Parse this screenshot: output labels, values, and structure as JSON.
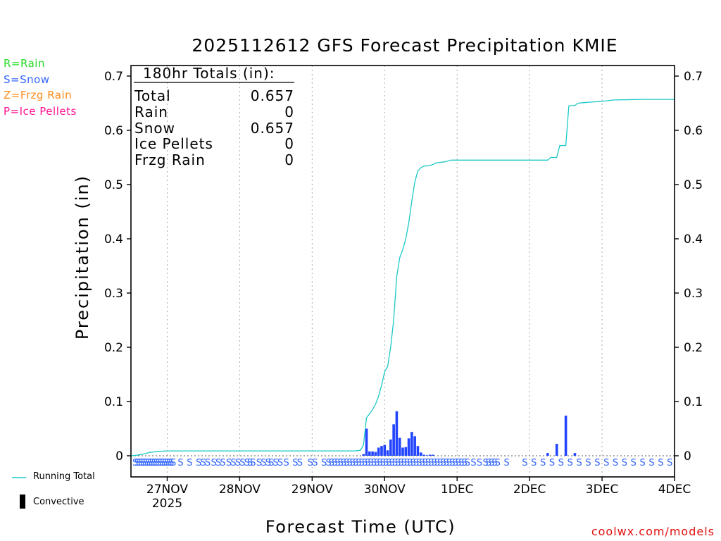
{
  "title": "2025112612 GFS Forecast Precipitation KMIE",
  "ptype_legend": [
    {
      "text": "R=Rain",
      "color": "#22dd22"
    },
    {
      "text": "S=Snow",
      "color": "#3366ff"
    },
    {
      "text": "Z=Frzg Rain",
      "color": "#ff8c1a"
    },
    {
      "text": "P=Ice Pellets",
      "color": "#ff1493"
    }
  ],
  "totals": {
    "header": "180hr Totals (in):",
    "rows": [
      {
        "label": "Total",
        "value": "0.657"
      },
      {
        "label": "Rain",
        "value": "0"
      },
      {
        "label": "Snow",
        "value": "0.657"
      },
      {
        "label": "Ice Pellets",
        "value": "0"
      },
      {
        "label": "Frzg Rain",
        "value": "0"
      }
    ]
  },
  "bottom_legend": {
    "running_total": "Running Total",
    "convective": "Convective"
  },
  "credit": "coolwx.com/models",
  "colors": {
    "running_total": "#1cc8c8",
    "snow_bar": "#2244ff",
    "snow_text": "#3366ff",
    "grid": "#aaaaaa"
  },
  "chart_data": {
    "type": "bar",
    "title": "2025112612 GFS Forecast Precipitation KMIE",
    "xlabel": "Forecast Time (UTC)",
    "ylabel": "Precipitation (in)",
    "ylim": [
      0,
      0.72
    ],
    "xlim_hours": [
      0,
      180
    ],
    "y_ticks": [
      "0",
      "0.1",
      "0.2",
      "0.3",
      "0.4",
      "0.5",
      "0.6",
      "0.7"
    ],
    "x_ticks": [
      {
        "hour": 12,
        "label": "27NOV",
        "sub": "2025"
      },
      {
        "hour": 36,
        "label": "28NOV",
        "sub": ""
      },
      {
        "hour": 60,
        "label": "29NOV",
        "sub": ""
      },
      {
        "hour": 84,
        "label": "30NOV",
        "sub": ""
      },
      {
        "hour": 108,
        "label": "1DEC",
        "sub": ""
      },
      {
        "hour": 132,
        "label": "2DEC",
        "sub": ""
      },
      {
        "hour": 156,
        "label": "3DEC",
        "sub": ""
      },
      {
        "hour": 180,
        "label": "4DEC",
        "sub": ""
      }
    ],
    "series": [
      {
        "name": "Running Total",
        "type": "line",
        "points": [
          [
            0,
            0
          ],
          [
            2,
            0.001
          ],
          [
            4,
            0.003
          ],
          [
            6,
            0.006
          ],
          [
            9,
            0.008
          ],
          [
            12,
            0.009
          ],
          [
            30,
            0.009
          ],
          [
            60,
            0.009
          ],
          [
            74,
            0.009
          ],
          [
            76,
            0.01
          ],
          [
            77,
            0.02
          ],
          [
            78,
            0.07
          ],
          [
            80,
            0.085
          ],
          [
            81,
            0.095
          ],
          [
            82,
            0.11
          ],
          [
            83,
            0.13
          ],
          [
            84,
            0.155
          ],
          [
            85,
            0.165
          ],
          [
            86,
            0.2
          ],
          [
            87,
            0.25
          ],
          [
            88,
            0.33
          ],
          [
            89,
            0.365
          ],
          [
            90,
            0.38
          ],
          [
            91,
            0.4
          ],
          [
            92,
            0.43
          ],
          [
            93,
            0.47
          ],
          [
            94,
            0.505
          ],
          [
            95,
            0.525
          ],
          [
            96,
            0.531
          ],
          [
            97,
            0.534
          ],
          [
            99,
            0.535
          ],
          [
            100,
            0.537
          ],
          [
            101,
            0.54
          ],
          [
            104,
            0.542
          ],
          [
            106,
            0.545
          ],
          [
            112,
            0.545
          ],
          [
            124,
            0.545
          ],
          [
            138,
            0.545
          ],
          [
            139,
            0.55
          ],
          [
            141,
            0.55
          ],
          [
            142,
            0.572
          ],
          [
            144,
            0.572
          ],
          [
            145,
            0.645
          ],
          [
            147,
            0.646
          ],
          [
            148,
            0.65
          ],
          [
            150,
            0.651
          ],
          [
            152,
            0.652
          ],
          [
            155,
            0.653
          ],
          [
            157,
            0.654
          ],
          [
            160,
            0.656
          ],
          [
            170,
            0.657
          ],
          [
            180,
            0.657
          ]
        ]
      },
      {
        "name": "Snow",
        "type": "bar",
        "points": [
          [
            77,
            0.003
          ],
          [
            78,
            0.05
          ],
          [
            79,
            0.008
          ],
          [
            80,
            0.008
          ],
          [
            81,
            0.007
          ],
          [
            82,
            0.015
          ],
          [
            83,
            0.018
          ],
          [
            84,
            0.02
          ],
          [
            85,
            0.01
          ],
          [
            86,
            0.03
          ],
          [
            87,
            0.058
          ],
          [
            88,
            0.082
          ],
          [
            89,
            0.033
          ],
          [
            90,
            0.015
          ],
          [
            91,
            0.016
          ],
          [
            92,
            0.032
          ],
          [
            93,
            0.044
          ],
          [
            94,
            0.036
          ],
          [
            95,
            0.018
          ],
          [
            96,
            0.006
          ],
          [
            97,
            0.002
          ],
          [
            98,
            0.001
          ],
          [
            99,
            0.002
          ],
          [
            100,
            0.002
          ],
          [
            138,
            0.005
          ],
          [
            141,
            0.022
          ],
          [
            144,
            0.074
          ],
          [
            147,
            0.005
          ]
        ]
      }
    ],
    "ptype_markers": {
      "symbol": "S",
      "hours": [
        0,
        0.7,
        1.4,
        2.1,
        2.8,
        3.5,
        4.2,
        4.9,
        5.6,
        6.3,
        7,
        7.7,
        8.4,
        9.1,
        9.8,
        10.5,
        11.2,
        11.9,
        12.6,
        15,
        18,
        21,
        22.5,
        24,
        26,
        27.5,
        29,
        31,
        32.5,
        34,
        35.5,
        37,
        38,
        39,
        41,
        42.5,
        44,
        45,
        46.5,
        48,
        50,
        53,
        54.5,
        58,
        59.5,
        62.5,
        64,
        65,
        66,
        67,
        68,
        69,
        70,
        71,
        72,
        73,
        74,
        75,
        76,
        77,
        78,
        79,
        80,
        81,
        82,
        83,
        84,
        85,
        86,
        87,
        88,
        89,
        90,
        91,
        92,
        93,
        94,
        95,
        96,
        97,
        98,
        99,
        100,
        101,
        102,
        103,
        104,
        105,
        106,
        107,
        108,
        109,
        110,
        112,
        114,
        116,
        117,
        118,
        119,
        120,
        123,
        129,
        132,
        135,
        138,
        141,
        144,
        147,
        150,
        153,
        156,
        159,
        162,
        165,
        168,
        171,
        174,
        177
      ]
    }
  }
}
